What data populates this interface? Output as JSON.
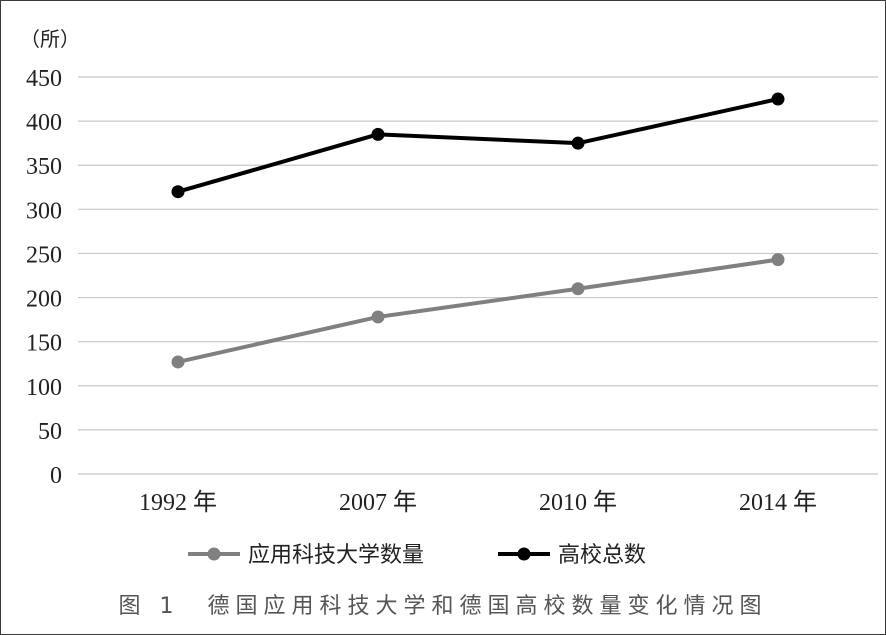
{
  "caption": "图 1　德国应用科技大学和德国高校数量变化情况图",
  "chart_data": {
    "type": "line",
    "unit_label": "（所）",
    "categories": [
      "1992 年",
      "2007 年",
      "2010 年",
      "2014 年"
    ],
    "ylim": [
      0,
      450
    ],
    "yticks": [
      0,
      50,
      100,
      150,
      200,
      250,
      300,
      350,
      400,
      450
    ],
    "grid": true,
    "legend_position": "bottom",
    "series": [
      {
        "name": "应用科技大学数量",
        "color": "#808080",
        "values": [
          127,
          178,
          210,
          243
        ]
      },
      {
        "name": "高校总数",
        "color": "#000000",
        "values": [
          320,
          385,
          375,
          425
        ]
      }
    ]
  }
}
